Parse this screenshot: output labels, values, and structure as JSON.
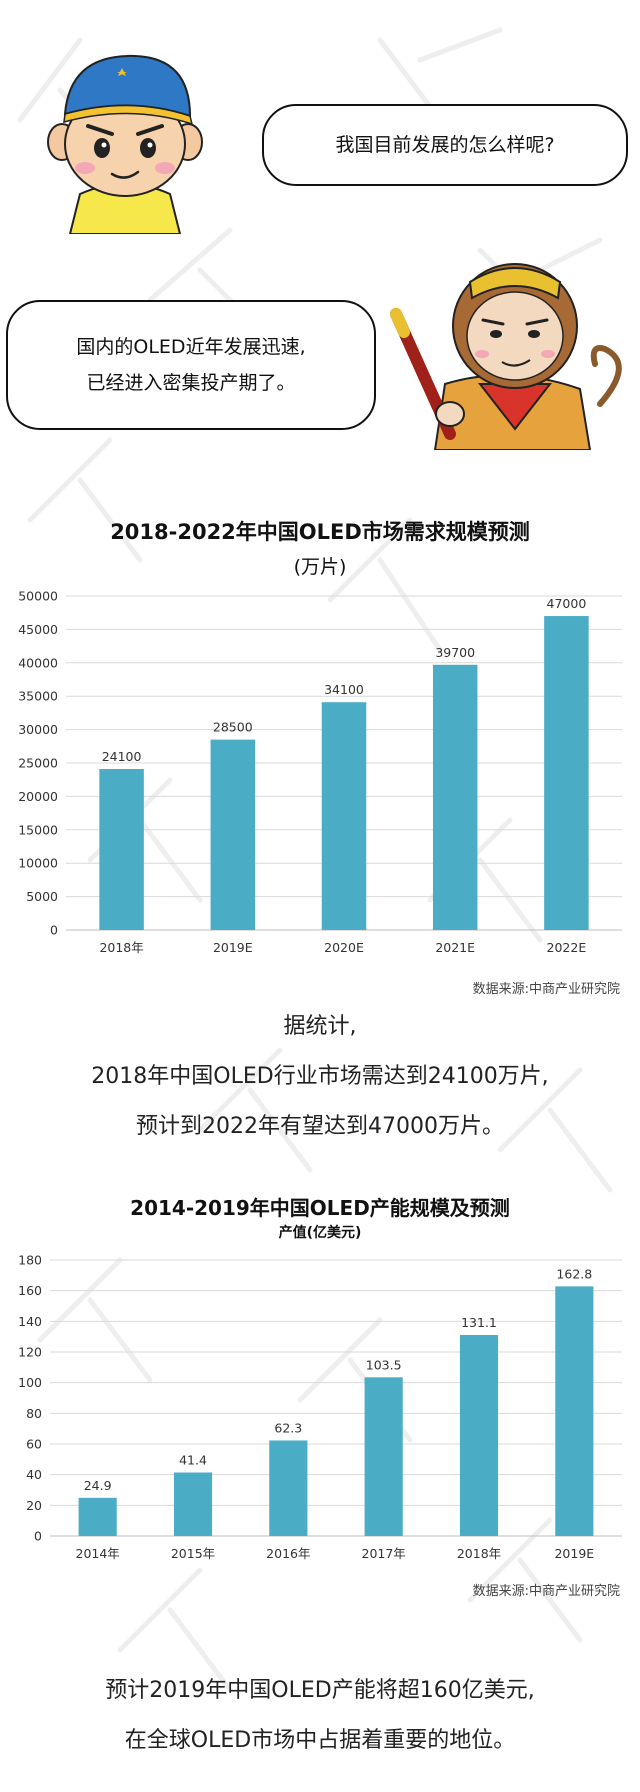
{
  "dialog": {
    "boy_question": "我国目前发展的怎么样呢?",
    "monkey_answer_line1": "国内的OLED近年发展迅速,",
    "monkey_answer_line2": "已经进入密集投产期了。"
  },
  "colors": {
    "bar": "#4bacc6",
    "grid": "#d9d9d9",
    "axis": "#bfbfbf"
  },
  "chart_data": [
    {
      "type": "bar",
      "title": "2018-2022年中国OLED市场需求规模预测",
      "subtitle": "(万片)",
      "categories": [
        "2018年",
        "2019E",
        "2020E",
        "2021E",
        "2022E"
      ],
      "values": [
        24100,
        28500,
        34100,
        39700,
        47000
      ],
      "value_labels": [
        "24100",
        "28500",
        "34100",
        "39700",
        "47000"
      ],
      "yticks": [
        "0",
        "5000",
        "10000",
        "15000",
        "20000",
        "25000",
        "30000",
        "35000",
        "40000",
        "45000",
        "50000"
      ],
      "ylim": [
        0,
        50000
      ],
      "grid": true,
      "source": "数据来源:中商产业研究院"
    },
    {
      "type": "bar",
      "title": "2014-2019年中国OLED产能规模及预测",
      "subtitle": "产值(亿美元)",
      "categories": [
        "2014年",
        "2015年",
        "2016年",
        "2017年",
        "2018年",
        "2019E"
      ],
      "values": [
        24.9,
        41.4,
        62.3,
        103.5,
        131.1,
        162.8
      ],
      "value_labels": [
        "24.9",
        "41.4",
        "62.3",
        "103.5",
        "131.1",
        "162.8"
      ],
      "yticks": [
        "0",
        "20",
        "40",
        "60",
        "80",
        "100",
        "120",
        "140",
        "160",
        "180"
      ],
      "ylim": [
        0,
        180
      ],
      "grid": true,
      "source": "数据来源:中商产业研究院"
    }
  ],
  "paragraph1": {
    "line1": "据统计,",
    "line2": "2018年中国OLED行业市场需达到24100万片,",
    "line3": "预计到2022年有望达到47000万片。"
  },
  "paragraph2": {
    "line1": "预计2019年中国OLED产能将超160亿美元,",
    "line2": "在全球OLED市场中占据着重要的地位。"
  }
}
